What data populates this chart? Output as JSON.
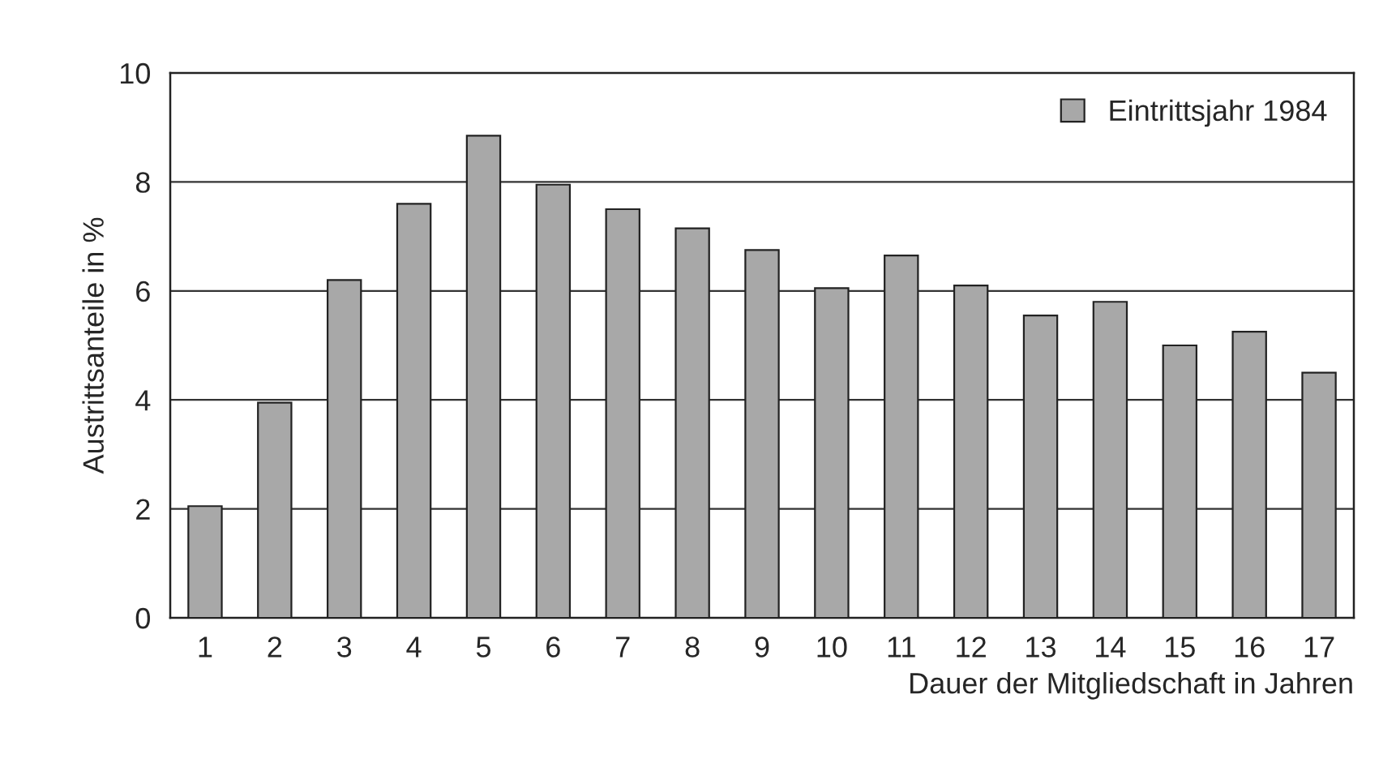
{
  "chart_data": {
    "type": "bar",
    "xlabel": "Dauer der Mitgliedschaft in Jahren",
    "ylabel": "Austrittsanteile in %",
    "categories": [
      "1",
      "2",
      "3",
      "4",
      "5",
      "6",
      "7",
      "8",
      "9",
      "10",
      "11",
      "12",
      "13",
      "14",
      "15",
      "16",
      "17"
    ],
    "series": [
      {
        "name": "Eintrittsjahr 1984",
        "color": "#a8a8a8",
        "values": [
          2.05,
          3.95,
          6.2,
          7.6,
          8.85,
          7.95,
          7.5,
          7.15,
          6.75,
          6.05,
          6.65,
          6.1,
          5.55,
          5.8,
          5.0,
          5.25,
          4.5
        ]
      }
    ],
    "ylim": [
      0,
      10
    ],
    "yticks": [
      0,
      2,
      4,
      6,
      8,
      10
    ],
    "grid": "y",
    "legend": "top right"
  }
}
